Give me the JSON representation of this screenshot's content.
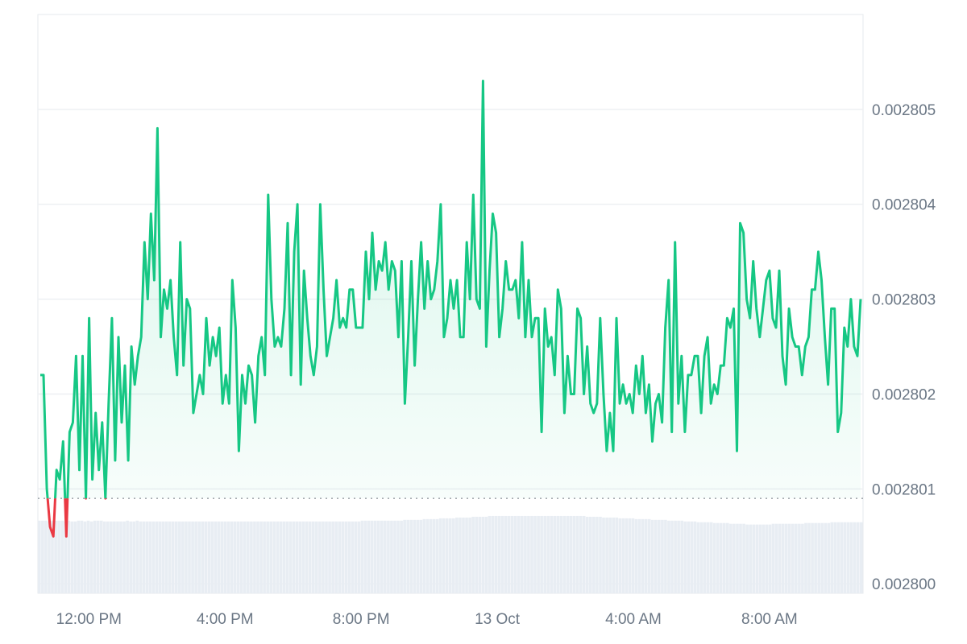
{
  "chart_data": {
    "type": "area",
    "baseline": 0.0028009,
    "ylim": [
      0.0027999,
      0.002806
    ],
    "y_ticks": [
      {
        "value": 0.0028,
        "label": "0.002800"
      },
      {
        "value": 0.002801,
        "label": "0.002801"
      },
      {
        "value": 0.002802,
        "label": "0.002802"
      },
      {
        "value": 0.002803,
        "label": "0.002803"
      },
      {
        "value": 0.002804,
        "label": "0.002804"
      },
      {
        "value": 0.002805,
        "label": "0.002805"
      }
    ],
    "x_range_hours": [
      10.5,
      34.75
    ],
    "x_ticks": [
      {
        "hour": 12,
        "label": "12:00 PM"
      },
      {
        "hour": 16,
        "label": "4:00 PM"
      },
      {
        "hour": 20,
        "label": "8:00 PM"
      },
      {
        "hour": 24,
        "label": "13 Oct"
      },
      {
        "hour": 28,
        "label": "4:00 AM"
      },
      {
        "hour": 32,
        "label": "8:00 AM"
      }
    ],
    "colors": {
      "up": "#16c784",
      "down": "#ea3943",
      "baseline": "#9aa0a6",
      "grid": "#eef0f3",
      "volume": "#e8edf3"
    },
    "series": [
      {
        "values": [
          0.0028022,
          0.0028022,
          0.002801,
          0.0028006,
          0.0028005,
          0.0028012,
          0.0028011,
          0.0028015,
          0.0028005,
          0.0028016,
          0.0028017,
          0.0028024,
          0.0028012,
          0.0028024,
          0.0028009,
          0.0028028,
          0.0028011,
          0.0028018,
          0.0028012,
          0.0028017,
          0.0028009,
          0.0028019,
          0.0028028,
          0.0028013,
          0.0028026,
          0.0028017,
          0.0028023,
          0.0028013,
          0.0028025,
          0.0028021,
          0.0028024,
          0.0028026,
          0.0028036,
          0.002803,
          0.0028039,
          0.0028032,
          0.0028048,
          0.0028026,
          0.0028031,
          0.0028029,
          0.0028032,
          0.0028026,
          0.0028022,
          0.0028036,
          0.0028023,
          0.002803,
          0.0028029,
          0.0028018,
          0.002802,
          0.0028022,
          0.002802,
          0.0028028,
          0.0028023,
          0.0028026,
          0.0028024,
          0.0028027,
          0.0028019,
          0.0028022,
          0.0028019,
          0.0028032,
          0.0028027,
          0.0028014,
          0.0028022,
          0.0028019,
          0.0028023,
          0.0028022,
          0.0028017,
          0.0028024,
          0.0028026,
          0.0028022,
          0.0028041,
          0.002803,
          0.0028025,
          0.0028026,
          0.0028025,
          0.0028029,
          0.0028038,
          0.0028022,
          0.0028035,
          0.002804,
          0.0028021,
          0.0028033,
          0.0028028,
          0.0028024,
          0.0028022,
          0.0028025,
          0.002804,
          0.0028031,
          0.0028024,
          0.0028026,
          0.0028028,
          0.0028032,
          0.0028027,
          0.0028028,
          0.0028027,
          0.0028031,
          0.0028031,
          0.0028027,
          0.0028027,
          0.0028027,
          0.0028035,
          0.002803,
          0.0028037,
          0.0028031,
          0.0028034,
          0.0028033,
          0.0028036,
          0.0028031,
          0.0028034,
          0.0028033,
          0.0028026,
          0.0028034,
          0.0028019,
          0.0028026,
          0.0028034,
          0.0028023,
          0.002803,
          0.0028036,
          0.0028029,
          0.0028034,
          0.002803,
          0.0028031,
          0.0028034,
          0.002804,
          0.0028026,
          0.0028028,
          0.0028032,
          0.0028029,
          0.0028032,
          0.0028026,
          0.0028026,
          0.0028036,
          0.002803,
          0.0028041,
          0.002803,
          0.0028029,
          0.0028053,
          0.0028025,
          0.0028033,
          0.0028039,
          0.0028037,
          0.0028026,
          0.0028029,
          0.0028034,
          0.0028031,
          0.0028031,
          0.0028032,
          0.0028028,
          0.0028036,
          0.0028026,
          0.0028032,
          0.0028026,
          0.0028028,
          0.0028028,
          0.0028016,
          0.0028029,
          0.0028025,
          0.0028026,
          0.0028022,
          0.0028031,
          0.0028029,
          0.0028018,
          0.0028024,
          0.002802,
          0.002802,
          0.0028029,
          0.0028028,
          0.002802,
          0.0028025,
          0.0028019,
          0.0028018,
          0.0028019,
          0.0028028,
          0.002802,
          0.0028014,
          0.0028018,
          0.0028014,
          0.0028028,
          0.0028019,
          0.0028021,
          0.0028019,
          0.002802,
          0.0028018,
          0.0028023,
          0.002802,
          0.0028024,
          0.0028018,
          0.0028021,
          0.0028015,
          0.0028019,
          0.002802,
          0.0028017,
          0.0028027,
          0.0028032,
          0.0028016,
          0.0028036,
          0.0028019,
          0.0028024,
          0.0028016,
          0.0028022,
          0.0028022,
          0.0028024,
          0.0028024,
          0.0028018,
          0.0028024,
          0.0028026,
          0.0028019,
          0.0028021,
          0.002802,
          0.0028023,
          0.0028023,
          0.0028028,
          0.0028027,
          0.0028029,
          0.0028014,
          0.0028038,
          0.0028037,
          0.002803,
          0.0028028,
          0.0028034,
          0.0028029,
          0.0028026,
          0.0028029,
          0.0028032,
          0.0028033,
          0.0028028,
          0.0028027,
          0.0028033,
          0.0028024,
          0.0028021,
          0.0028029,
          0.0028026,
          0.0028025,
          0.0028025,
          0.0028022,
          0.0028025,
          0.0028026,
          0.0028031,
          0.0028031,
          0.0028035,
          0.0028032,
          0.0028026,
          0.0028021,
          0.0028029,
          0.0028029,
          0.0028016,
          0.0028018,
          0.0028027,
          0.0028025,
          0.002803,
          0.0028025,
          0.0028024,
          0.002803
        ]
      }
    ],
    "volume": [
      0.93,
      0.93,
      0.93,
      0.92,
      0.93,
      0.93,
      0.93,
      0.93,
      0.92,
      0.93,
      0.92,
      0.92,
      0.93,
      0.93,
      0.92,
      0.93,
      0.92,
      0.93,
      0.93,
      0.93,
      0.92,
      0.92,
      0.92,
      0.92,
      0.92,
      0.92,
      0.92,
      0.93,
      0.92,
      0.92,
      0.93,
      0.92,
      0.92,
      0.92,
      0.92,
      0.92,
      0.92,
      0.92,
      0.92,
      0.92,
      0.92,
      0.92,
      0.92,
      0.92,
      0.92,
      0.92,
      0.92,
      0.92,
      0.92,
      0.92,
      0.92,
      0.92,
      0.92,
      0.92,
      0.92,
      0.92,
      0.92,
      0.92,
      0.92,
      0.92,
      0.92,
      0.92,
      0.92,
      0.92,
      0.92,
      0.92,
      0.92,
      0.92,
      0.92,
      0.92,
      0.92,
      0.92,
      0.92,
      0.92,
      0.92,
      0.92,
      0.92,
      0.92,
      0.92,
      0.92,
      0.92,
      0.92,
      0.92,
      0.92,
      0.92,
      0.92,
      0.92,
      0.92,
      0.92,
      0.92,
      0.92,
      0.92,
      0.92,
      0.92,
      0.92,
      0.92,
      0.92,
      0.92,
      0.92,
      0.93,
      0.93,
      0.93,
      0.93,
      0.93,
      0.93,
      0.93,
      0.93,
      0.93,
      0.93,
      0.93,
      0.93,
      0.93,
      0.94,
      0.94,
      0.94,
      0.94,
      0.94,
      0.94,
      0.95,
      0.95,
      0.95,
      0.95,
      0.95,
      0.96,
      0.96,
      0.96,
      0.96,
      0.96,
      0.97,
      0.97,
      0.97,
      0.97,
      0.97,
      0.98,
      0.98,
      0.98,
      0.98,
      0.98,
      0.99,
      0.99,
      0.99,
      0.99,
      0.99,
      0.99,
      0.99,
      0.99,
      0.99,
      0.99,
      0.99,
      0.99,
      0.99,
      0.99,
      0.99,
      0.99,
      0.99,
      0.99,
      0.99,
      0.99,
      0.99,
      0.99,
      0.99,
      0.99,
      0.99,
      0.99,
      0.99,
      0.99,
      0.99,
      0.99,
      0.98,
      0.98,
      0.98,
      0.98,
      0.98,
      0.97,
      0.97,
      0.97,
      0.97,
      0.97,
      0.96,
      0.96,
      0.96,
      0.96,
      0.96,
      0.95,
      0.95,
      0.95,
      0.95,
      0.95,
      0.94,
      0.94,
      0.94,
      0.94,
      0.94,
      0.93,
      0.93,
      0.93,
      0.93,
      0.93,
      0.92,
      0.92,
      0.92,
      0.92,
      0.91,
      0.91,
      0.91,
      0.91,
      0.91,
      0.9,
      0.9,
      0.9,
      0.9,
      0.9,
      0.89,
      0.89,
      0.89,
      0.89,
      0.89,
      0.88,
      0.88,
      0.88,
      0.88,
      0.88,
      0.88,
      0.88,
      0.88,
      0.89,
      0.89,
      0.89,
      0.89,
      0.89,
      0.89,
      0.89,
      0.89,
      0.89,
      0.89,
      0.9,
      0.9,
      0.9,
      0.9,
      0.9,
      0.9,
      0.9,
      0.9,
      0.91,
      0.91,
      0.91,
      0.91,
      0.91,
      0.91,
      0.91,
      0.91,
      0.91,
      0.91
    ]
  }
}
